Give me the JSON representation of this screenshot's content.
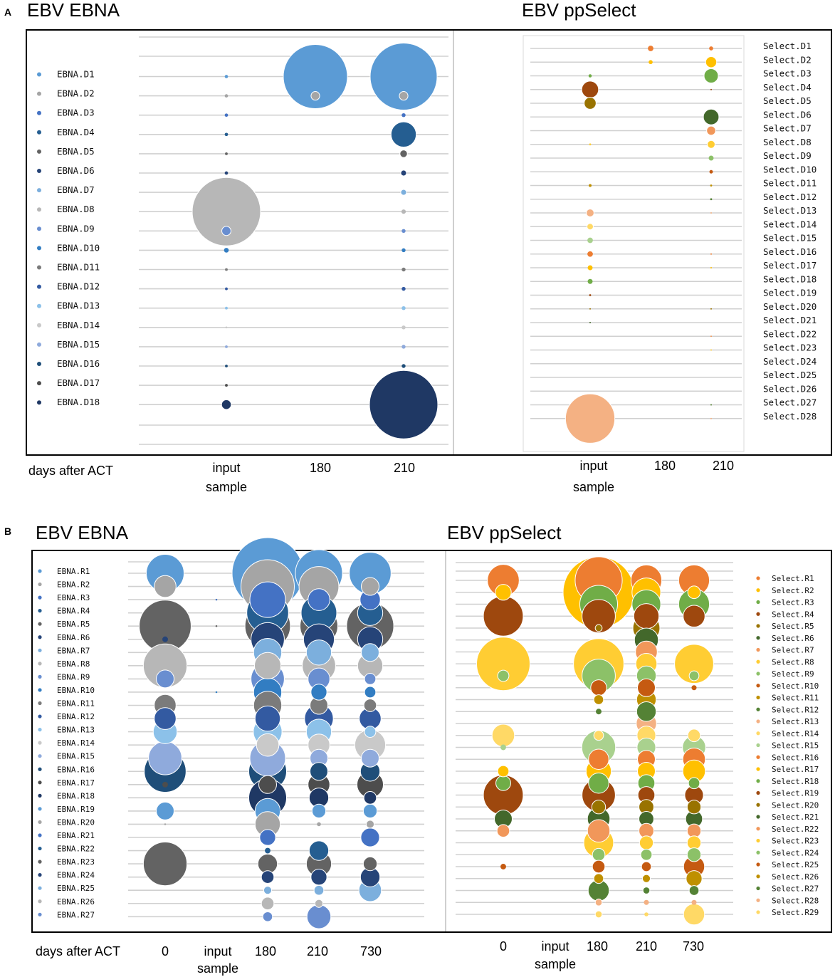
{
  "figure": {
    "panel_a_letter": "A",
    "panel_b_letter": "B",
    "days_label": "days after ACT"
  },
  "colors": {
    "grid": "#d0d0d0",
    "ebna": [
      "#5b9bd5",
      "#a5a5a5",
      "#4472c4",
      "#255e91",
      "#636363",
      "#264478",
      "#7cafdd",
      "#b7b7b7",
      "#698ed0",
      "#327dc2",
      "#7b7b7b",
      "#335aa1",
      "#8cc1e9",
      "#c9c9c9",
      "#8faadc",
      "#1f4e79",
      "#4d4d4d",
      "#1f3864"
    ],
    "select": [
      "#ed7d31",
      "#ffc000",
      "#70ad47",
      "#9e480e",
      "#997300",
      "#43682b",
      "#f1975a",
      "#ffcd33",
      "#8cc168",
      "#c55a11",
      "#bf9000",
      "#548235",
      "#f4b183",
      "#ffd966",
      "#a9d18e"
    ]
  },
  "chart_data": [
    {
      "id": "A-EBNA",
      "type": "scatter",
      "title": "EBV EBNA",
      "categories": [
        "input sample",
        "180",
        "210"
      ],
      "xlabel": "days after ACT",
      "series_names": [
        "EBNA.D1",
        "EBNA.D2",
        "EBNA.D3",
        "EBNA.D4",
        "EBNA.D5",
        "EBNA.D6",
        "EBNA.D7",
        "EBNA.D8",
        "EBNA.D9",
        "EBNA.D10",
        "EBNA.D11",
        "EBNA.D12",
        "EBNA.D13",
        "EBNA.D14",
        "EBNA.D15",
        "EBNA.D16",
        "EBNA.D17",
        "EBNA.D18"
      ],
      "values": [
        [
          0.06,
          22,
          24
        ],
        [
          0.06,
          0.4,
          0.4
        ],
        [
          0.06,
          0,
          0.08
        ],
        [
          0.06,
          0,
          3.4
        ],
        [
          0.04,
          0,
          0.3
        ],
        [
          0.06,
          0,
          0.18
        ],
        [
          0,
          0,
          0.18
        ],
        [
          25,
          0,
          0.1
        ],
        [
          0.45,
          0,
          0.08
        ],
        [
          0.12,
          0,
          0.08
        ],
        [
          0.04,
          0,
          0.08
        ],
        [
          0.04,
          0,
          0.08
        ],
        [
          0.04,
          0,
          0.08
        ],
        [
          0.02,
          0,
          0.08
        ],
        [
          0.04,
          0,
          0.08
        ],
        [
          0.04,
          0,
          0.08
        ],
        [
          0.04,
          0,
          0
        ],
        [
          0.5,
          0,
          25
        ]
      ]
    },
    {
      "id": "A-Select",
      "type": "scatter",
      "title": "EBV ppSelect",
      "categories": [
        "input sample",
        "180",
        "210"
      ],
      "series_names": [
        "Select.D1",
        "Select.D2",
        "Select.D3",
        "Select.D4",
        "Select.D5",
        "Select.D6",
        "Select.D7",
        "Select.D8",
        "Select.D9",
        "Select.D10",
        "Select.D11",
        "Select.D12",
        "Select.D13",
        "Select.D14",
        "Select.D15",
        "Select.D16",
        "Select.D17",
        "Select.D18",
        "Select.D19",
        "Select.D20",
        "Select.D21",
        "Select.D22",
        "Select.D23",
        "Select.D24",
        "Select.D25",
        "Select.D26",
        "Select.D27",
        "Select.D28"
      ],
      "values": [
        [
          0,
          0.15,
          0.08
        ],
        [
          0,
          0.08,
          0.6
        ],
        [
          0.05,
          0,
          1.0
        ],
        [
          1.4,
          0,
          0.01
        ],
        [
          0.7,
          0,
          0
        ],
        [
          0,
          0,
          1.2
        ],
        [
          0,
          0,
          0.4
        ],
        [
          0.02,
          0,
          0.3
        ],
        [
          0,
          0,
          0.12
        ],
        [
          0,
          0,
          0.06
        ],
        [
          0.04,
          0,
          0.02
        ],
        [
          0,
          0,
          0.02
        ],
        [
          0.3,
          0,
          0.01
        ],
        [
          0.2,
          0,
          0
        ],
        [
          0.15,
          0,
          0
        ],
        [
          0.15,
          0,
          0.01
        ],
        [
          0.12,
          0,
          0.01
        ],
        [
          0.12,
          0,
          0
        ],
        [
          0.02,
          0,
          0
        ],
        [
          0.01,
          0,
          0.01
        ],
        [
          0.01,
          0,
          0
        ],
        [
          0,
          0,
          0.01
        ],
        [
          0,
          0,
          0.01
        ],
        [
          0,
          0,
          0
        ],
        [
          0,
          0,
          0
        ],
        [
          0,
          0,
          0
        ],
        [
          0,
          0,
          0.01
        ],
        [
          12,
          0,
          0.01
        ]
      ]
    },
    {
      "id": "B-EBNA",
      "type": "scatter",
      "title": "EBV EBNA",
      "categories": [
        "0",
        "input sample",
        "180",
        "210",
        "730"
      ],
      "xlabel": "days after ACT",
      "series_names": [
        "EBNA.R1",
        "EBNA.R2",
        "EBNA.R3",
        "EBNA.R4",
        "EBNA.R5",
        "EBNA.R6",
        "EBNA.R7",
        "EBNA.R8",
        "EBNA.R9",
        "EBNA.R10",
        "EBNA.R11",
        "EBNA.R12",
        "EBNA.R13",
        "EBNA.R14",
        "EBNA.R15",
        "EBNA.R16",
        "EBNA.R17",
        "EBNA.R18",
        "EBNA.R19",
        "EBNA.R20",
        "EBNA.R21",
        "EBNA.R22",
        "EBNA.R23",
        "EBNA.R24",
        "EBNA.R25",
        "EBNA.R26",
        "EBNA.R27"
      ],
      "values": [
        [
          4.5,
          0,
          16,
          7,
          5.5
        ],
        [
          1.5,
          0,
          9,
          5,
          1
        ],
        [
          0,
          0.01,
          4,
          1.5,
          1.3
        ],
        [
          0,
          0,
          5.5,
          4,
          2
        ],
        [
          8.5,
          0.01,
          6.5,
          4.5,
          7
        ],
        [
          0.1,
          0,
          3.5,
          3,
          2
        ],
        [
          0,
          0,
          2.5,
          2,
          1
        ],
        [
          6,
          0,
          2.2,
          3.5,
          2
        ],
        [
          1,
          0,
          3.5,
          1.5,
          0.4
        ],
        [
          0,
          0.01,
          2.5,
          0.8,
          0.4
        ],
        [
          1.5,
          0,
          2.5,
          1,
          0.5
        ],
        [
          1.5,
          0,
          2,
          2.6,
          1.5
        ],
        [
          1.8,
          0,
          2.6,
          2,
          0.4
        ],
        [
          0,
          0,
          1.6,
          1.5,
          3
        ],
        [
          3.5,
          0,
          4,
          1,
          1
        ],
        [
          5.5,
          0,
          4.5,
          1,
          1.2
        ],
        [
          0.1,
          0,
          1,
          1.5,
          2.2
        ],
        [
          0,
          0,
          4.5,
          1.2,
          0.5
        ],
        [
          1,
          0,
          2,
          0.6,
          0.6
        ],
        [
          0.01,
          0,
          2,
          0.05,
          0.2
        ],
        [
          0,
          0,
          0.8,
          0,
          1.1
        ],
        [
          0,
          0,
          0.1,
          1.2,
          0
        ],
        [
          6,
          0,
          1.2,
          2,
          0.6
        ],
        [
          0,
          0,
          0.5,
          0.8,
          1.2
        ],
        [
          0,
          0,
          0.2,
          0.3,
          1.6
        ],
        [
          0,
          0,
          0.5,
          0.2,
          0
        ],
        [
          0,
          0,
          0.3,
          1.8,
          0
        ]
      ]
    },
    {
      "id": "B-Select",
      "type": "scatter",
      "title": "EBV ppSelect",
      "categories": [
        "0",
        "input",
        "180",
        "210",
        "730"
      ],
      "series_names": [
        "Select.R1",
        "Select.R2",
        "Select.R3",
        "Select.R4",
        "Select.R5",
        "Select.R6",
        "Select.R7",
        "Select.R8",
        "Select.R9",
        "Select.R10",
        "Select.R11",
        "Select.R12",
        "Select.R13",
        "Select.R14",
        "Select.R15",
        "Select.R16",
        "Select.R17",
        "Select.R18",
        "Select.R19",
        "Select.R20",
        "Select.R21",
        "Select.R22",
        "Select.R23",
        "Select.R24",
        "Select.R25",
        "Select.R26",
        "Select.R27",
        "Select.R28",
        "Select.R29"
      ],
      "values": [
        [
          3.2,
          0,
          7,
          3,
          3
        ],
        [
          0.8,
          0,
          16,
          2.6,
          0.5
        ],
        [
          0,
          0,
          4.5,
          2.6,
          3
        ],
        [
          5,
          0,
          3.5,
          2,
          1.5
        ],
        [
          0,
          0,
          0.15,
          2.3,
          0
        ],
        [
          0,
          0,
          0,
          1.8,
          0
        ],
        [
          0,
          0,
          0,
          1.5,
          0
        ],
        [
          9,
          0,
          8,
          1.4,
          4.8
        ],
        [
          0.4,
          0,
          3.5,
          1.2,
          0.3
        ],
        [
          0,
          0,
          0.8,
          1,
          0.08
        ],
        [
          0,
          0,
          0.3,
          1.2,
          0
        ],
        [
          0,
          0,
          0.1,
          1.2,
          0
        ],
        [
          0,
          0,
          0,
          1.3,
          0
        ],
        [
          1.6,
          0,
          0.3,
          1.1,
          0.5
        ],
        [
          0.1,
          0,
          3.6,
          1.1,
          1.7
        ],
        [
          0,
          0,
          1.3,
          1,
          1.6
        ],
        [
          0.4,
          0,
          2,
          1,
          1.6
        ],
        [
          0.7,
          0,
          1.3,
          0.9,
          0.4
        ],
        [
          5,
          0,
          3.5,
          0.9,
          1.1
        ],
        [
          0,
          0,
          0.6,
          0.7,
          0.6
        ],
        [
          1,
          0,
          1.6,
          0.7,
          0.9
        ],
        [
          0.5,
          0,
          1.6,
          0.7,
          0.6
        ],
        [
          0,
          0,
          2.8,
          0.6,
          0.6
        ],
        [
          0,
          0,
          0.5,
          0.4,
          0.6
        ],
        [
          0.1,
          0,
          0.5,
          0.3,
          1.4
        ],
        [
          0,
          0,
          0.3,
          0.2,
          0.8
        ],
        [
          0,
          0,
          1.4,
          0.15,
          0.3
        ],
        [
          0,
          0,
          0.15,
          0.08,
          0.08
        ],
        [
          0,
          0,
          0.15,
          0.05,
          1.4
        ]
      ]
    }
  ]
}
